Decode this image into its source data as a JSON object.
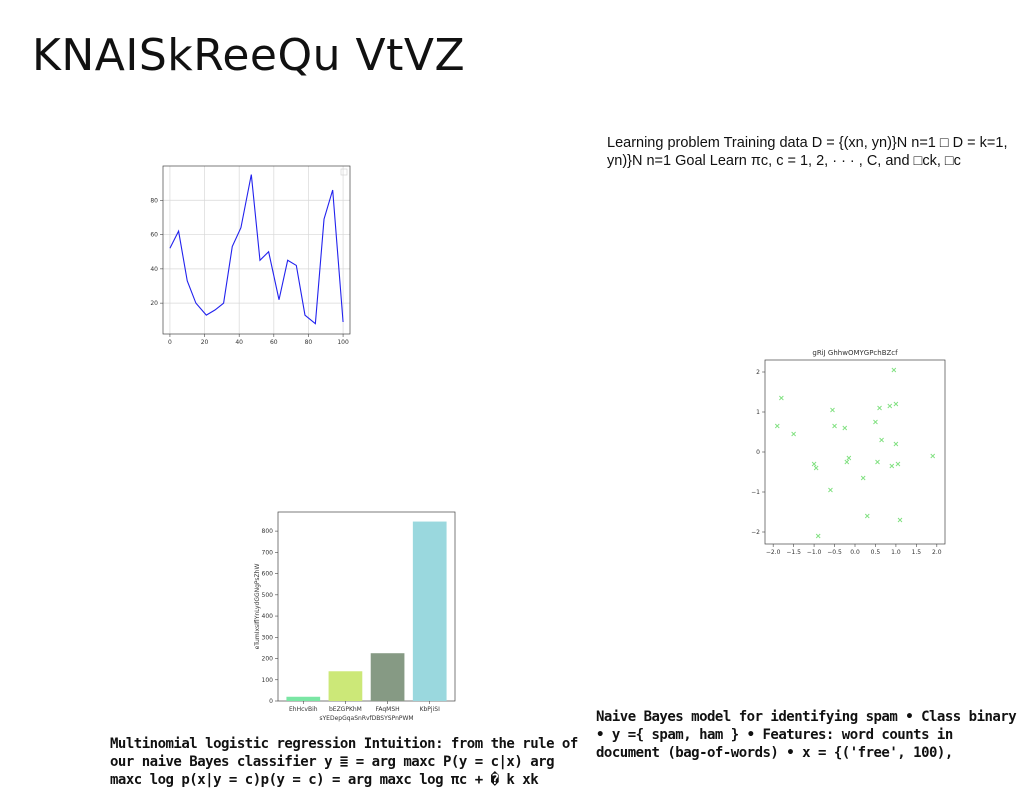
{
  "page": {
    "title": "KNAISkReeQu VtVZ",
    "text_blocks": [
      "Learning problem Training data D = {(xn, yn)}N n=1 □ D = k=1, yn)}N n=1 Goal Learn πc, c = 1, 2, · · · , C, and □ck, □c",
      "Multinomial logistic regression Intuition: from the rule of our naive Bayes classifier y ≣ = arg maxc P(y = c|x) arg maxc log p(x|y = c)p(y = c) = arg maxc log πc + � k xk",
      "Naive Bayes model for identifying spam • Class binary • y ={ spam, ham } • Features: word counts in document (bag-of-words) • x = {('free', 100),"
    ]
  },
  "chart_data": [
    {
      "type": "line",
      "title": "",
      "xlabel": "",
      "ylabel": "",
      "xlim": [
        -4,
        104
      ],
      "ylim": [
        2,
        100
      ],
      "xticks": [
        0,
        20,
        40,
        60,
        80,
        100
      ],
      "yticks": [
        20,
        40,
        60,
        80
      ],
      "grid": true,
      "series": [
        {
          "color": "#2222ee",
          "x": [
            0,
            5,
            10,
            15,
            21,
            26,
            31,
            36,
            41,
            47,
            52,
            57,
            63,
            68,
            73,
            78,
            84,
            89,
            94,
            100
          ],
          "y": [
            52,
            62,
            33,
            20,
            13,
            16,
            20,
            53,
            64,
            95,
            45,
            50,
            22,
            45,
            42,
            13,
            8,
            69,
            86,
            9
          ]
        }
      ]
    },
    {
      "type": "scatter",
      "title": "gRiJ GhhwOMYGPchBZcf",
      "xlabel": "",
      "ylabel": "",
      "xlim": [
        -2.2,
        2.2
      ],
      "ylim": [
        -2.3,
        2.3
      ],
      "xticks": [
        -2.0,
        -1.5,
        -1.0,
        -0.5,
        0.0,
        0.5,
        1.0,
        1.5,
        2.0
      ],
      "xtick_labels": [
        "−2.0",
        "−1.5",
        "−1.0",
        "−0.5",
        "0.0",
        "0.5",
        "1.0",
        "1.5",
        "2.0"
      ],
      "yticks": [
        -2,
        -1,
        0,
        1,
        2
      ],
      "ytick_labels": [
        "−2",
        "−1",
        "0",
        "1",
        "2"
      ],
      "marker": "x",
      "color": "#7ee07e",
      "points": [
        [
          -1.9,
          0.65
        ],
        [
          -1.8,
          1.35
        ],
        [
          -1.5,
          0.45
        ],
        [
          -1.0,
          -0.3
        ],
        [
          -0.95,
          -0.4
        ],
        [
          -0.9,
          -2.1
        ],
        [
          -0.6,
          -0.95
        ],
        [
          -0.55,
          1.05
        ],
        [
          -0.5,
          0.65
        ],
        [
          -0.25,
          0.6
        ],
        [
          -0.2,
          -0.25
        ],
        [
          -0.15,
          -0.15
        ],
        [
          0.2,
          -0.65
        ],
        [
          0.3,
          -1.6
        ],
        [
          0.5,
          0.75
        ],
        [
          0.55,
          -0.25
        ],
        [
          0.6,
          1.1
        ],
        [
          0.65,
          0.3
        ],
        [
          0.85,
          1.15
        ],
        [
          0.9,
          -0.35
        ],
        [
          0.95,
          2.05
        ],
        [
          1.0,
          1.2
        ],
        [
          1.0,
          0.2
        ],
        [
          1.05,
          -0.3
        ],
        [
          1.1,
          -1.7
        ],
        [
          1.9,
          -0.1
        ]
      ]
    },
    {
      "type": "bar",
      "title": "",
      "xlabel": "sYEDepGqaSnRvfDBSYSPnPWM",
      "ylabel": "eTumIxsIflYnLydGGNgPsZhW",
      "categories": [
        "EhHcvBih",
        "bEZGPKhM",
        "FAqMSH",
        "KbPjiSI"
      ],
      "values": [
        20,
        140,
        225,
        845
      ],
      "colors": [
        "#7ae6a4",
        "#cce878",
        "#869a84",
        "#9ad8de"
      ],
      "ylim": [
        0,
        890
      ],
      "yticks": [
        0,
        100,
        200,
        300,
        400,
        500,
        600,
        700,
        800
      ]
    }
  ]
}
